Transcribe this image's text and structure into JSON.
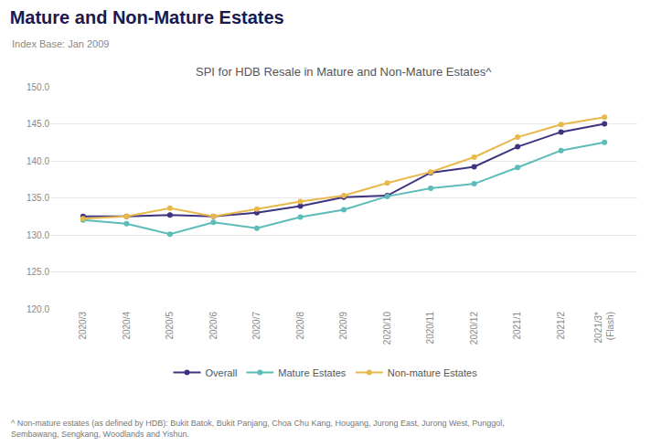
{
  "chart_data": {
    "type": "line",
    "title": "Mature and Non-Mature Estates",
    "subtitle": "Index Base: Jan 2009",
    "annotations": [
      "SPI for HDB Resale in Mature and Non-Mature Estates^",
      "^ Non-mature estates (as defined by HDB): Bukit Batok, Bukit Panjang, Choa Chu Kang, Hougang, Jurong East, Jurong West, Punggol,\nSembawang, Sengkang, Woodlands and Yishun."
    ],
    "categories": [
      "2020/3",
      "2020/4",
      "2020/5",
      "2020/6",
      "2020/7",
      "2020/8",
      "2020/9",
      "2020/10",
      "2020/11",
      "2020/12",
      "2021/1",
      "2021/2",
      "2021/3*\n(Flash)"
    ],
    "series": [
      {
        "name": "Overall",
        "color": "#3d3380",
        "marker": "circle",
        "line_style": "solid",
        "values": [
          132.5,
          132.5,
          132.7,
          132.5,
          133.0,
          133.9,
          135.1,
          135.3,
          138.4,
          139.2,
          141.9,
          143.9,
          145.0
        ]
      },
      {
        "name": "Mature Estates",
        "color": "#5bbcb8",
        "marker": "circle",
        "line_style": "solid",
        "values": [
          132.0,
          131.5,
          130.1,
          131.7,
          130.9,
          132.4,
          133.4,
          135.2,
          136.3,
          136.9,
          139.1,
          141.4,
          142.5
        ]
      },
      {
        "name": "Non-mature Estates",
        "color": "#e8b84b",
        "marker": "circle",
        "line_style": "solid",
        "values": [
          132.2,
          132.5,
          133.6,
          132.5,
          133.5,
          134.5,
          135.3,
          137.0,
          138.5,
          140.5,
          143.2,
          144.9,
          145.9
        ]
      }
    ],
    "ylim": [
      120.0,
      150.0
    ],
    "yticks": [
      {
        "value": 120,
        "label": "120.0"
      },
      {
        "value": 125,
        "label": "125.0"
      },
      {
        "value": 130,
        "label": "130.0"
      },
      {
        "value": 135,
        "label": "135.0"
      },
      {
        "value": 140,
        "label": "140.0"
      },
      {
        "value": 145,
        "label": "145.0"
      },
      {
        "value": 150,
        "label": "150.0"
      }
    ],
    "grid": true,
    "legend": "bottom"
  }
}
